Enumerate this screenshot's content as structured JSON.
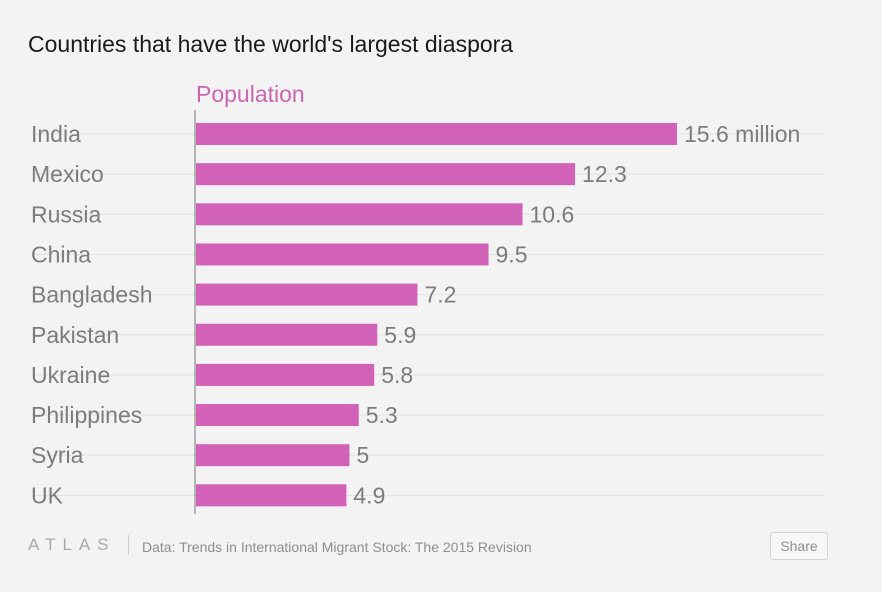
{
  "chart_data": {
    "type": "bar",
    "orientation": "horizontal",
    "title": "Countries that have the world's largest diaspora",
    "series_label": "Population",
    "categories": [
      "India",
      "Mexico",
      "Russia",
      "China",
      "Bangladesh",
      "Pakistan",
      "Ukraine",
      "Philippines",
      "Syria",
      "UK"
    ],
    "values": [
      15.6,
      12.3,
      10.6,
      9.5,
      7.2,
      5.9,
      5.8,
      5.3,
      5,
      4.9
    ],
    "value_labels": [
      "15.6 million",
      "12.3",
      "10.6",
      "9.5",
      "7.2",
      "5.9",
      "5.8",
      "5.3",
      "5",
      "4.9"
    ],
    "xlim": [
      0,
      16
    ],
    "grid": true,
    "bar_color": "#d261b8",
    "series_label_color": "#c966b2"
  },
  "footer": {
    "logo": "ATLAS",
    "source": "Data: Trends in International Migrant Stock: The 2015 Revision",
    "share_label": "Share"
  }
}
